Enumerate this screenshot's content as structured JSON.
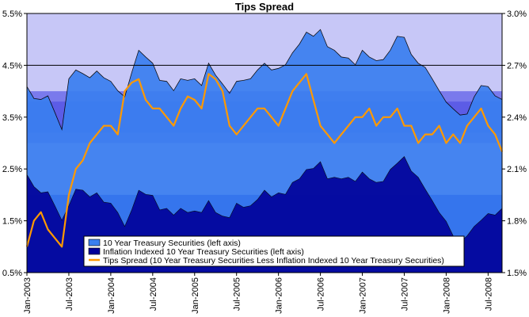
{
  "chart_data": {
    "type": "area",
    "title": "Tips Spread",
    "x_tick_labels": [
      "Jan-2003",
      "Jul-2003",
      "Jan-2004",
      "Jul-2004",
      "Jan-2005",
      "Jul-2005",
      "Jan-2006",
      "Jul-2006",
      "Jan-2007",
      "Jul-2007",
      "Jan-2008",
      "Jul-2008"
    ],
    "x_range": [
      "2003-01",
      "2008-09"
    ],
    "y_left": {
      "ticks": [
        "0.5%",
        "1.5%",
        "2.5%",
        "3.5%",
        "4.5%",
        "5.5%"
      ],
      "range": [
        0.5,
        5.5
      ],
      "unit": "%"
    },
    "y_right": {
      "ticks": [
        "1.5%",
        "1.8%",
        "2.1%",
        "2.4%",
        "2.7%",
        "3.0%"
      ],
      "range": [
        1.5,
        3.0
      ],
      "unit": "%"
    },
    "x": [
      "2003-01",
      "2003-02",
      "2003-03",
      "2003-04",
      "2003-05",
      "2003-06",
      "2003-07",
      "2003-08",
      "2003-09",
      "2003-10",
      "2003-11",
      "2003-12",
      "2004-01",
      "2004-02",
      "2004-03",
      "2004-04",
      "2004-05",
      "2004-06",
      "2004-07",
      "2004-08",
      "2004-09",
      "2004-10",
      "2004-11",
      "2004-12",
      "2005-01",
      "2005-02",
      "2005-03",
      "2005-04",
      "2005-05",
      "2005-06",
      "2005-07",
      "2005-08",
      "2005-09",
      "2005-10",
      "2005-11",
      "2005-12",
      "2006-01",
      "2006-02",
      "2006-03",
      "2006-04",
      "2006-05",
      "2006-06",
      "2006-07",
      "2006-08",
      "2006-09",
      "2006-10",
      "2006-11",
      "2006-12",
      "2007-01",
      "2007-02",
      "2007-03",
      "2007-04",
      "2007-05",
      "2007-06",
      "2007-07",
      "2007-08",
      "2007-09",
      "2007-10",
      "2007-11",
      "2007-12",
      "2008-01",
      "2008-02",
      "2008-03",
      "2008-04",
      "2008-05",
      "2008-06",
      "2008-07",
      "2008-08",
      "2008-09"
    ],
    "series": [
      {
        "name": "10 Year Treasury Securities (left axis)",
        "axis": "left",
        "color": "#3a7ff0",
        "values": [
          4.05,
          3.9,
          3.8,
          3.95,
          3.55,
          3.3,
          4.2,
          4.45,
          4.3,
          4.3,
          4.35,
          4.3,
          4.15,
          4.05,
          3.85,
          4.4,
          4.75,
          4.7,
          4.5,
          4.25,
          4.15,
          4.05,
          4.2,
          4.25,
          4.2,
          4.15,
          4.5,
          4.35,
          4.1,
          4.0,
          4.15,
          4.25,
          4.2,
          4.45,
          4.5,
          4.45,
          4.4,
          4.55,
          4.7,
          4.95,
          5.1,
          5.1,
          5.15,
          4.9,
          4.75,
          4.7,
          4.6,
          4.55,
          4.75,
          4.7,
          4.55,
          4.65,
          4.75,
          5.1,
          5.0,
          4.75,
          4.5,
          4.5,
          4.2,
          4.05,
          3.75,
          3.7,
          3.5,
          3.6,
          3.85,
          4.15,
          4.05,
          3.95,
          3.8
        ]
      },
      {
        "name": "Inflation Indexed 10 Year Treasury Securities (left axis)",
        "axis": "left",
        "color": "#000099",
        "values": [
          2.35,
          2.2,
          2.0,
          2.1,
          1.75,
          1.55,
          1.75,
          2.15,
          2.05,
          2.0,
          2.0,
          1.9,
          1.8,
          1.7,
          1.35,
          1.75,
          2.05,
          2.05,
          1.95,
          1.75,
          1.7,
          1.65,
          1.7,
          1.7,
          1.65,
          1.7,
          1.85,
          1.7,
          1.55,
          1.6,
          1.8,
          1.8,
          1.75,
          1.95,
          2.05,
          2.0,
          2.0,
          2.05,
          2.2,
          2.35,
          2.45,
          2.55,
          2.6,
          2.35,
          2.3,
          2.35,
          2.3,
          2.3,
          2.4,
          2.35,
          2.2,
          2.3,
          2.45,
          2.65,
          2.7,
          2.5,
          2.3,
          2.15,
          1.85,
          1.7,
          1.45,
          1.25,
          1.05,
          1.25,
          1.35,
          1.55,
          1.6,
          1.65,
          1.7
        ]
      },
      {
        "name": "Tips Spread (10 Year Treasury Securities Less Inflation Indexed 10 Year Treasury Securities)",
        "axis": "right",
        "color": "#ff9900",
        "values": [
          1.65,
          1.8,
          1.85,
          1.75,
          1.7,
          1.65,
          1.95,
          2.1,
          2.15,
          2.25,
          2.3,
          2.35,
          2.35,
          2.3,
          2.55,
          2.6,
          2.62,
          2.5,
          2.45,
          2.45,
          2.4,
          2.35,
          2.45,
          2.52,
          2.5,
          2.45,
          2.65,
          2.62,
          2.55,
          2.35,
          2.3,
          2.35,
          2.4,
          2.45,
          2.45,
          2.4,
          2.35,
          2.45,
          2.55,
          2.6,
          2.65,
          2.5,
          2.35,
          2.3,
          2.25,
          2.3,
          2.35,
          2.4,
          2.4,
          2.45,
          2.35,
          2.4,
          2.4,
          2.45,
          2.35,
          2.35,
          2.25,
          2.3,
          2.3,
          2.35,
          2.25,
          2.3,
          2.25,
          2.35,
          2.4,
          2.45,
          2.35,
          2.3,
          2.2
        ]
      }
    ],
    "legend_position": "bottom-center",
    "grid": "horizontal band shading"
  },
  "colors": {
    "band_light": "#c7c7f7",
    "band_mid": "#7a7aec",
    "band_inner": "#5c5ce6",
    "band_strong": "#0000cc",
    "treasury_fill": "#3a7ff0",
    "tips_fill": "#000099",
    "spread_line": "#ff9900"
  }
}
